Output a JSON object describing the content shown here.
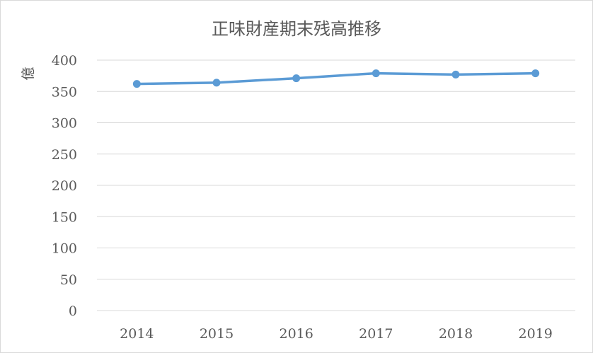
{
  "chart_data": {
    "type": "line",
    "title": "正味財産期末残高推移",
    "xlabel": "",
    "ylabel": "億",
    "categories": [
      "2014",
      "2015",
      "2016",
      "2017",
      "2018",
      "2019"
    ],
    "series": [
      {
        "values": [
          362,
          364,
          371,
          379,
          377,
          379
        ],
        "color": "#5b9bd5"
      }
    ],
    "ylim": [
      0,
      400
    ],
    "yticks": [
      "0",
      "50",
      "100",
      "150",
      "200",
      "250",
      "300",
      "350",
      "400"
    ],
    "grid": true,
    "legend": "none"
  }
}
